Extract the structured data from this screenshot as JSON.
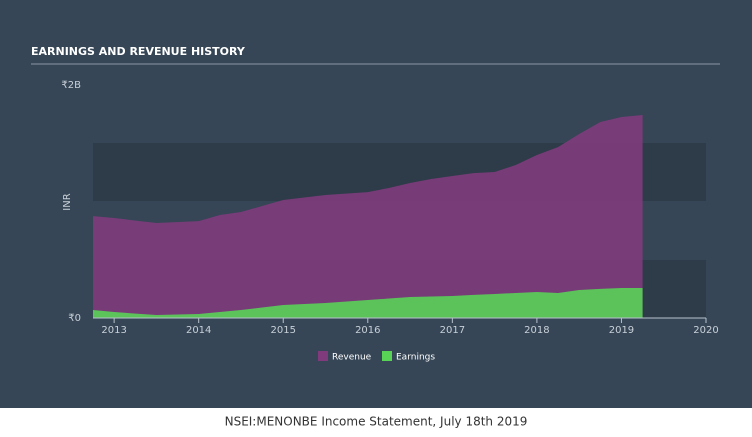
{
  "chart_data": {
    "type": "area",
    "title": "EARNINGS AND REVENUE HISTORY",
    "y_label": "INR",
    "caption": "NSEI:MENONBE Income Statement, July 18th 2019",
    "x": [
      2012.75,
      2013.0,
      2013.5,
      2014.0,
      2014.25,
      2014.5,
      2014.75,
      2015.0,
      2015.5,
      2016.0,
      2016.25,
      2016.5,
      2016.75,
      2017.0,
      2017.25,
      2017.5,
      2017.75,
      2018.0,
      2018.25,
      2018.5,
      2018.75,
      2019.0,
      2019.25
    ],
    "series": [
      {
        "name": "Revenue",
        "color": "#7f3b7c",
        "values": [
          875000000,
          858000000,
          815000000,
          832000000,
          884000000,
          910000000,
          961000000,
          1013000000,
          1056000000,
          1081000000,
          1116000000,
          1159000000,
          1193000000,
          1219000000,
          1244000000,
          1253000000,
          1313000000,
          1399000000,
          1467000000,
          1579000000,
          1682000000,
          1725000000,
          1742000000
        ]
      },
      {
        "name": "Earnings",
        "color": "#58d356",
        "values": [
          69000000,
          51000000,
          26000000,
          34000000,
          52000000,
          69000000,
          90000000,
          112000000,
          129000000,
          154000000,
          167000000,
          180000000,
          185000000,
          189000000,
          198000000,
          206000000,
          215000000,
          223000000,
          215000000,
          240000000,
          250000000,
          257000000,
          257000000
        ]
      }
    ],
    "xlim": [
      2012.75,
      2020
    ],
    "xticks": [
      2013,
      2014,
      2015,
      2016,
      2017,
      2018,
      2019,
      2020
    ],
    "ylim": [
      0,
      2000000000
    ],
    "yticks": [
      {
        "value": 0,
        "label": "₹0"
      },
      {
        "value": 2000000000,
        "label": "₹2B"
      }
    ],
    "legend": "bottom"
  }
}
